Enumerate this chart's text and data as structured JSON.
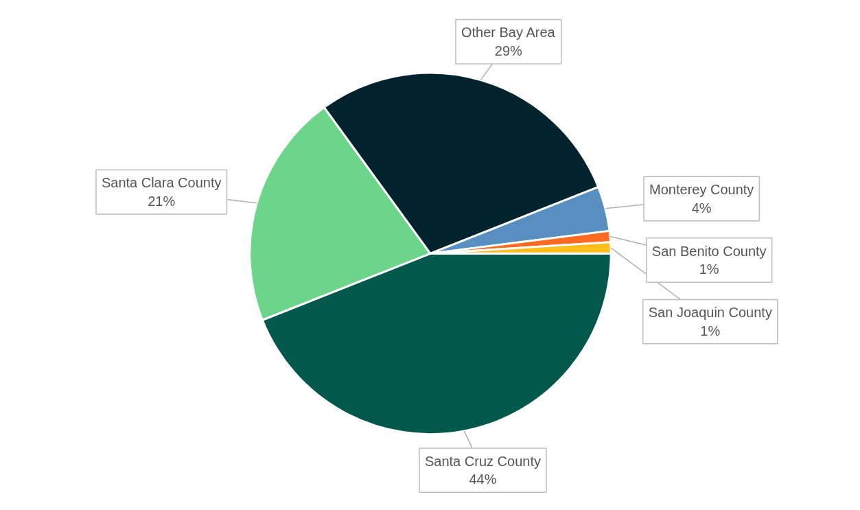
{
  "chart_data": {
    "type": "pie",
    "categories": [
      "Santa Cruz County",
      "Santa Clara County",
      "Other Bay Area",
      "Monterey County",
      "San Benito County",
      "San Joaquin County"
    ],
    "values": [
      44,
      21,
      29,
      4,
      1,
      1
    ],
    "colors": [
      "#02584a",
      "#6dd58a",
      "#00232d",
      "#578fc0",
      "#fd6a21",
      "#fdbd1a"
    ],
    "value_labels": [
      "44%",
      "21%",
      "29%",
      "4%",
      "1%",
      "1%"
    ]
  }
}
